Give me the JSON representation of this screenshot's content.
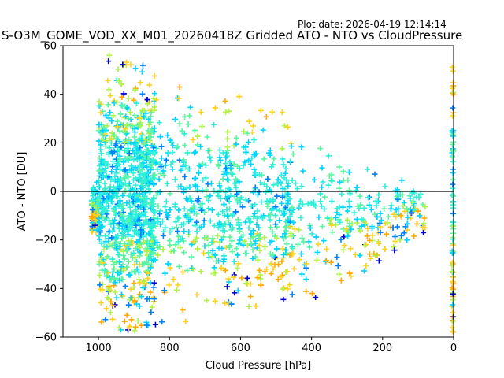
{
  "chart_data": {
    "type": "scatter",
    "title": "S-O3M_GOME_VOD_XX_M01_20260418Z Gridded ATO - NTO vs CloudPressure",
    "plot_date": "Plot date: 2026-04-19 12:14:14",
    "xlabel": "Cloud Pressure [hPa]",
    "ylabel": "ATO - NTO [DU]",
    "xlim": [
      1100,
      0
    ],
    "ylim": [
      -60,
      60
    ],
    "x_inverted": true,
    "x_ticks": [
      1000,
      800,
      600,
      400,
      200,
      0
    ],
    "y_ticks": [
      60,
      40,
      20,
      0,
      -20,
      -40,
      -60
    ],
    "reference_line": {
      "y": 0,
      "color": "#000000"
    },
    "marker": "+",
    "grid": false,
    "color_scale": [
      "#0000cd",
      "#0080ff",
      "#00d4ff",
      "#2ef0d8",
      "#5cf4a0",
      "#b0f24a",
      "#ffd21f",
      "#ffaa00"
    ],
    "cloud_summary": [
      {
        "x": 1000,
        "y_min": -58,
        "y_max": 58
      },
      {
        "x": 900,
        "y_min": -58,
        "y_max": 55
      },
      {
        "x": 800,
        "y_min": -55,
        "y_max": 50
      },
      {
        "x": 700,
        "y_min": -52,
        "y_max": 45
      },
      {
        "x": 600,
        "y_min": -50,
        "y_max": 40
      },
      {
        "x": 500,
        "y_min": -48,
        "y_max": 35
      },
      {
        "x": 400,
        "y_min": -45,
        "y_max": 28
      },
      {
        "x": 300,
        "y_min": -38,
        "y_max": 18
      },
      {
        "x": 200,
        "y_min": -28,
        "y_max": 10
      },
      {
        "x": 100,
        "y_min": -18,
        "y_max": 5
      }
    ],
    "edge_column": {
      "x": 0,
      "y_min": -58,
      "y_max": 52
    }
  }
}
